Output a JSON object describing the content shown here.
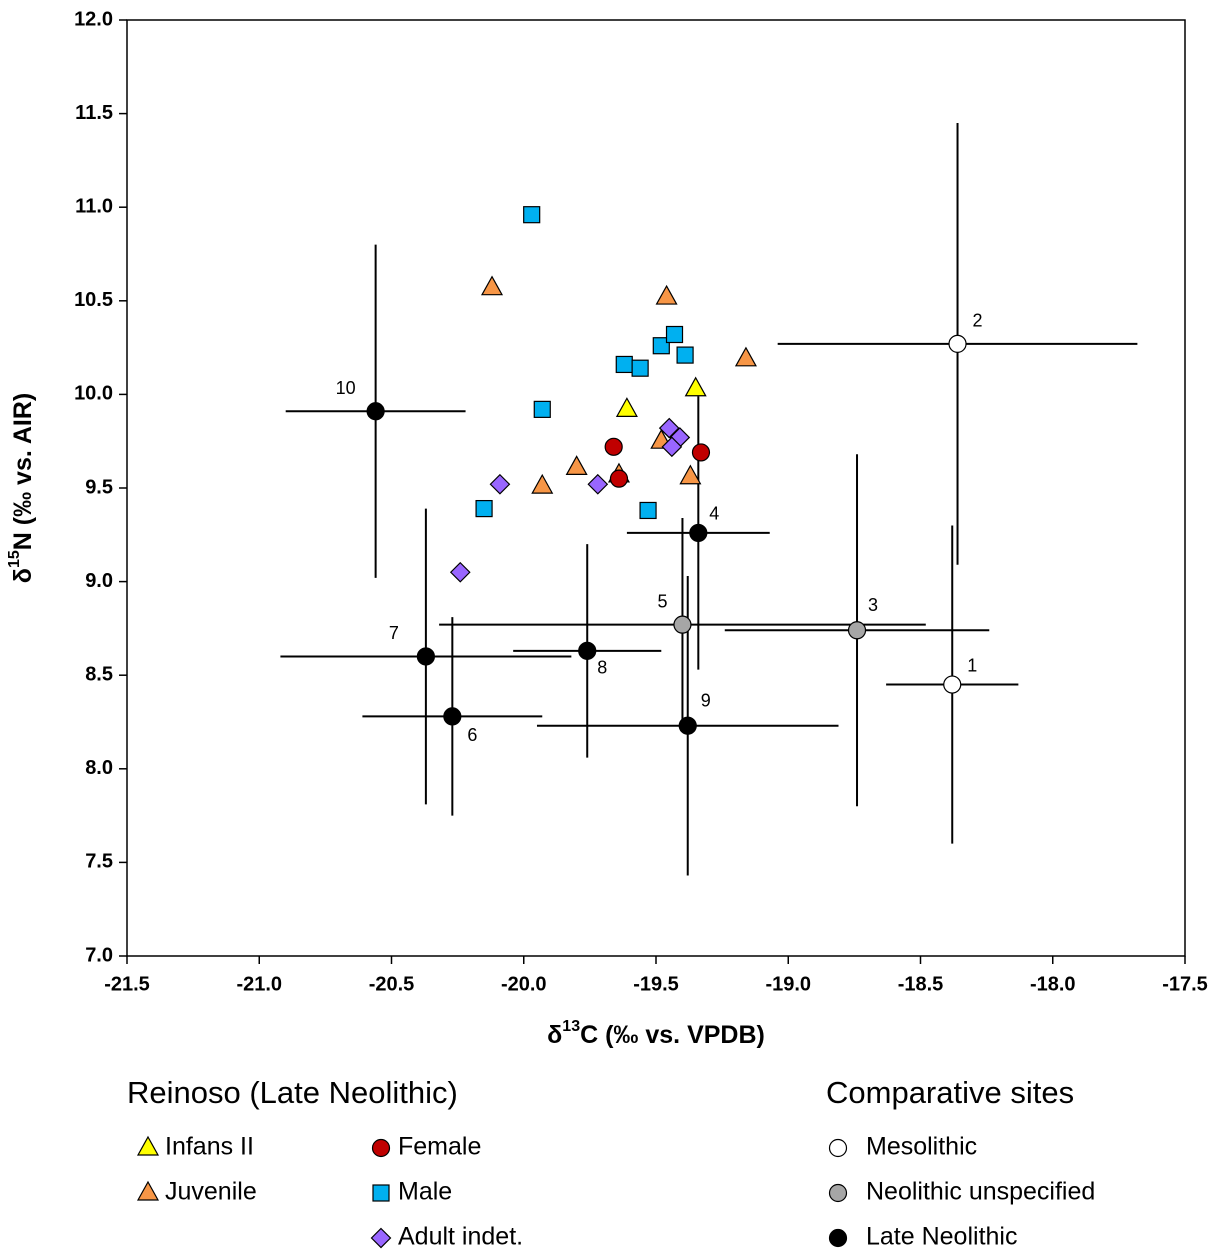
{
  "chart_data": {
    "type": "scatter",
    "x_label": {
      "pre": "δ",
      "sup": "13",
      "post": "C (‰ vs. VPDB)"
    },
    "y_label": {
      "pre": "δ",
      "sup": "15",
      "post": "N (‰ vs. AIR)"
    },
    "xlim": [
      -21.5,
      -17.5
    ],
    "ylim": [
      7.0,
      12.0
    ],
    "xticks": [
      -21.5,
      {
        "value": -21.0,
        "label": "-21.0"
      },
      -20.5,
      {
        "value": -20.0,
        "label": "-20.0"
      },
      -19.5,
      {
        "value": -19.0,
        "label": "-19.0"
      },
      -18.5,
      {
        "value": -18.0,
        "label": "-18.0"
      },
      -17.5
    ],
    "yticks": [
      {
        "value": 7.0,
        "label": "7.0"
      },
      7.5,
      {
        "value": 8.0,
        "label": "8.0"
      },
      8.5,
      {
        "value": 9.0,
        "label": "9.0"
      },
      9.5,
      {
        "value": 10.0,
        "label": "10.0"
      },
      10.5,
      {
        "value": 11.0,
        "label": "11.0"
      },
      11.5,
      {
        "value": 12.0,
        "label": "12.0"
      }
    ],
    "legend_titles": [
      "Reinoso (Late Neolithic)",
      "Comparative sites"
    ],
    "series": [
      {
        "name": "Infans II",
        "color": "#ffff00",
        "marker": "triangle",
        "x": [
          -19.61,
          -19.35
        ],
        "values": [
          9.92,
          10.03
        ]
      },
      {
        "name": "Juvenile",
        "color": "#f79646",
        "marker": "triangle",
        "x": [
          -20.12,
          -19.46,
          -19.16,
          -19.8,
          -19.93,
          -19.64,
          -19.48,
          -19.37
        ],
        "values": [
          10.57,
          10.52,
          10.19,
          9.61,
          9.51,
          9.57,
          9.75,
          9.56
        ]
      },
      {
        "name": "Female",
        "color": "#c00000",
        "marker": "circle",
        "x": [
          -19.66,
          -19.64,
          -19.33
        ],
        "values": [
          9.72,
          9.55,
          9.69
        ]
      },
      {
        "name": "Male",
        "color": "#00b0f0",
        "marker": "square",
        "x": [
          -19.97,
          -19.48,
          -19.43,
          -19.39,
          -19.62,
          -19.56,
          -19.93,
          -20.15,
          -19.53
        ],
        "values": [
          10.96,
          10.26,
          10.32,
          10.21,
          10.16,
          10.14,
          9.92,
          9.39,
          9.38
        ]
      },
      {
        "name": "Adult indet.",
        "color": "#9966ff",
        "marker": "diamond",
        "x": [
          -20.09,
          -19.72,
          -19.45,
          -19.41,
          -19.44,
          -20.24
        ],
        "values": [
          9.52,
          9.52,
          9.82,
          9.77,
          9.72,
          9.05
        ]
      }
    ],
    "comparative": [
      {
        "name": "Mesolithic",
        "color": "#ffffff",
        "marker": "circle",
        "point_labels": [
          "1",
          "2"
        ],
        "x": [
          -18.38,
          -18.36
        ],
        "values": [
          8.45,
          10.27
        ],
        "xerr": [
          0.25,
          0.68
        ],
        "yerr": [
          0.85,
          1.18
        ]
      },
      {
        "name": "Neolithic unspecified",
        "color": "#a6a6a6",
        "marker": "circle",
        "point_labels": [
          "3",
          "5"
        ],
        "x": [
          -18.74,
          -19.4
        ],
        "values": [
          8.74,
          8.77
        ],
        "xerr": [
          0.5,
          0.92
        ],
        "yerr": [
          0.94,
          0.57
        ]
      },
      {
        "name": "Late Neolithic",
        "color": "#000000",
        "marker": "circle",
        "point_labels": [
          "4",
          "6",
          "7",
          "8",
          "9",
          "10"
        ],
        "x": [
          -19.34,
          -20.27,
          -20.37,
          -19.76,
          -19.38,
          -20.56
        ],
        "values": [
          9.26,
          8.28,
          8.6,
          8.63,
          8.23,
          9.91
        ],
        "xerr": [
          0.27,
          0.34,
          0.55,
          0.28,
          0.57,
          0.34
        ],
        "yerr": [
          0.73,
          0.53,
          0.79,
          0.57,
          0.8,
          0.89
        ]
      }
    ]
  }
}
